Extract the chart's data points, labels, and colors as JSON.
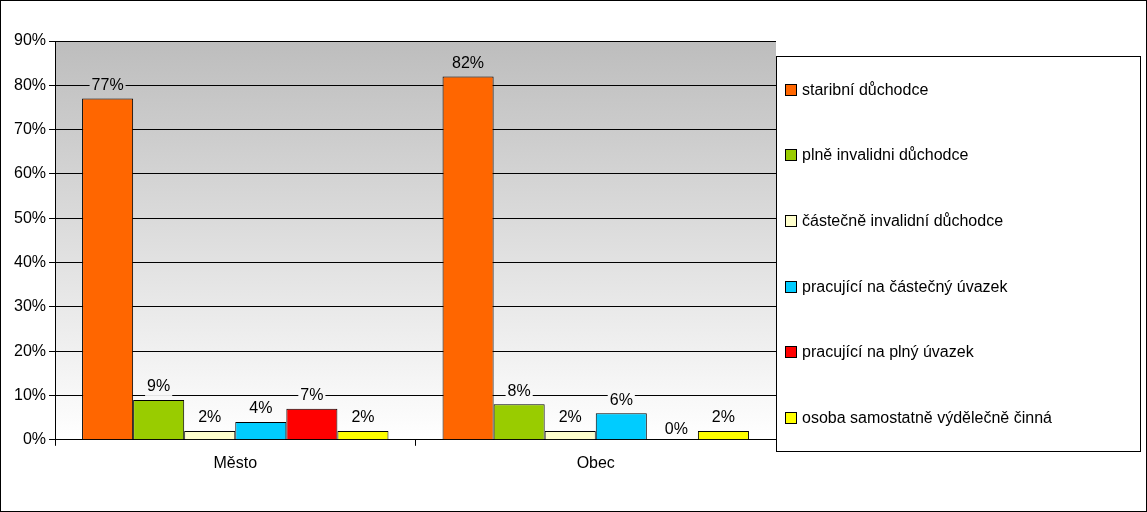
{
  "chart_data": {
    "type": "bar",
    "categories": [
      "Město",
      "Obec"
    ],
    "series": [
      {
        "name": "staribní důchodce",
        "color": "#ff6600",
        "values": [
          77,
          82
        ],
        "value_labels": [
          "77%",
          "82%"
        ]
      },
      {
        "name": "plně invalidni důchodce",
        "color": "#99cc00",
        "values": [
          9,
          8
        ],
        "value_labels": [
          "9%",
          "8%"
        ]
      },
      {
        "name": "částečně invalidní důchodce",
        "color": "#ffffcc",
        "values": [
          2,
          2
        ],
        "value_labels": [
          "2%",
          "2%"
        ]
      },
      {
        "name": "pracující na částečný úvazek",
        "color": "#00ccff",
        "values": [
          4,
          6
        ],
        "value_labels": [
          "4%",
          "6%"
        ]
      },
      {
        "name": "pracující na plný úvazek",
        "color": "#ff0000",
        "values": [
          7,
          0
        ],
        "value_labels": [
          "7%",
          null
        ]
      },
      {
        "name": "osoba samostatně výdělečně činná",
        "color": "#ffff00",
        "values": [
          2,
          2
        ],
        "value_labels": [
          "2%",
          "2%"
        ]
      }
    ],
    "ylim": [
      0,
      90
    ],
    "yticks": [
      {
        "value": 0,
        "label": "0%"
      },
      {
        "value": 10,
        "label": "10%"
      },
      {
        "value": 20,
        "label": "20%"
      },
      {
        "value": 30,
        "label": "30%"
      },
      {
        "value": 40,
        "label": "40%"
      },
      {
        "value": 50,
        "label": "50%"
      },
      {
        "value": 60,
        "label": "60%"
      },
      {
        "value": 70,
        "label": "70%"
      },
      {
        "value": 80,
        "label": "80%"
      },
      {
        "value": 90,
        "label": "90%"
      }
    ],
    "grid": "y",
    "legend": "right",
    "annotations": [
      "0%"
    ]
  }
}
